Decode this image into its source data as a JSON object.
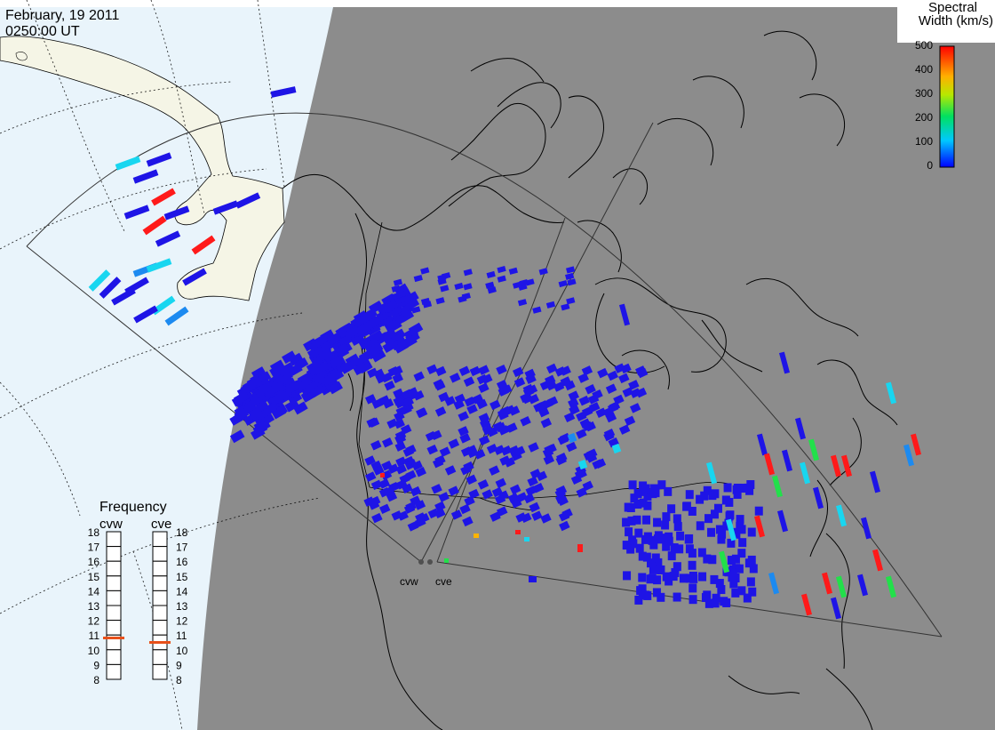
{
  "header": {
    "date": "February, 19 2011",
    "time": "0250:00 UT"
  },
  "colorbar": {
    "title_line1": "Spectral",
    "title_line2": "Width (km/s)",
    "ticks": [
      "500",
      "400",
      "300",
      "200",
      "100",
      "0"
    ]
  },
  "frequency_panel": {
    "title": "Frequency",
    "radars": [
      {
        "label": "cvw",
        "value_mhz": 10.8
      },
      {
        "label": "cve",
        "value_mhz": 10.5
      }
    ],
    "ticks": [
      "18",
      "17",
      "16",
      "15",
      "14",
      "13",
      "12",
      "11",
      "10",
      "9",
      "8"
    ],
    "indicator_color": "#e8501a"
  },
  "map_labels": {
    "radar_west": "cvw",
    "radar_east": "cve"
  },
  "colors": {
    "night": "#8c8c8c",
    "ocean_day": "#e9f4fb",
    "land_day": "#f5f5e6",
    "data_main": "#1e14e6",
    "data_light": "#1c8af0",
    "data_cyan": "#18d6f0",
    "data_green": "#22e04a",
    "data_red": "#ff1a1a",
    "data_orange": "#ffb400"
  }
}
